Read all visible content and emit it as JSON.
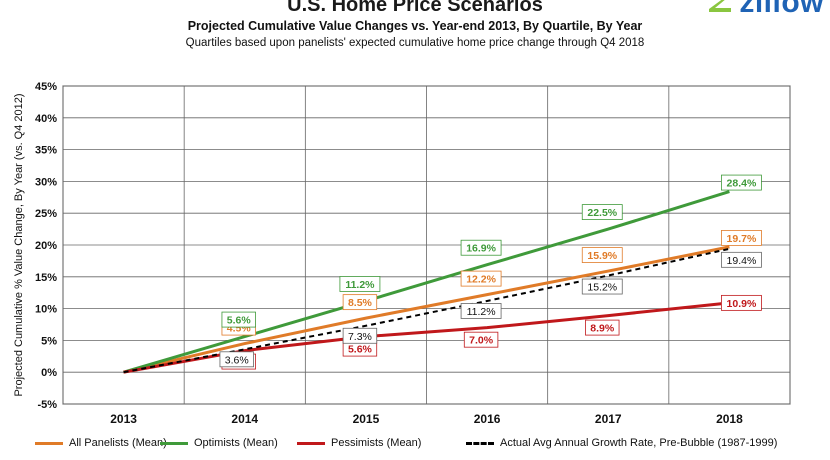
{
  "chart_data": {
    "type": "line",
    "title": "U.S. Home Price Scenarios",
    "subtitle": "Projected Cumulative Value Changes vs. Year-end 2013, By Quartile, By Year",
    "subsubtitle": "Quartiles based upon panelists' expected cumulative home price change through Q4 2018",
    "ylabel": "Projected Cumulative % Value Change, By Year  (vs. Q4 2012)",
    "xlabel": "",
    "x": [
      "2013",
      "2014",
      "2015",
      "2016",
      "2017",
      "2018"
    ],
    "ylim": [
      -5,
      45
    ],
    "yticks": [
      "-5%",
      "0%",
      "5%",
      "10%",
      "15%",
      "20%",
      "25%",
      "30%",
      "35%",
      "40%",
      "45%"
    ],
    "grid": true,
    "legend_position": "bottom",
    "series": [
      {
        "name": "All Panelists (Mean)",
        "color": "#e07b28",
        "dashed": false,
        "values": [
          0,
          4.5,
          8.5,
          12.2,
          15.9,
          19.7
        ],
        "labels": [
          "",
          "4.5%",
          "8.5%",
          "12.2%",
          "15.9%",
          "19.7%"
        ]
      },
      {
        "name": "Optimists (Mean)",
        "color": "#3f9a3a",
        "dashed": false,
        "values": [
          0,
          5.6,
          11.2,
          16.9,
          22.5,
          28.4
        ],
        "labels": [
          "",
          "5.6%",
          "11.2%",
          "16.9%",
          "22.5%",
          "28.4%"
        ]
      },
      {
        "name": "Pessimists (Mean)",
        "color": "#c0181b",
        "dashed": false,
        "values": [
          0,
          3.4,
          5.6,
          7.0,
          8.9,
          10.9
        ],
        "labels": [
          "",
          "3.4%",
          "5.6%",
          "7.0%",
          "8.9%",
          "10.9%"
        ]
      },
      {
        "name": "Actual Avg Annual Growth Rate, Pre-Bubble (1987-1999)",
        "color": "#000000",
        "dashed": true,
        "values": [
          0,
          3.6,
          7.3,
          11.2,
          15.2,
          19.4
        ],
        "labels": [
          "",
          "3.6%",
          "7.3%",
          "11.2%",
          "15.2%",
          "19.4%"
        ]
      }
    ]
  },
  "brand": {
    "logo_text": "zillow",
    "color": "#1f63b5",
    "accent": "#8ac640"
  }
}
